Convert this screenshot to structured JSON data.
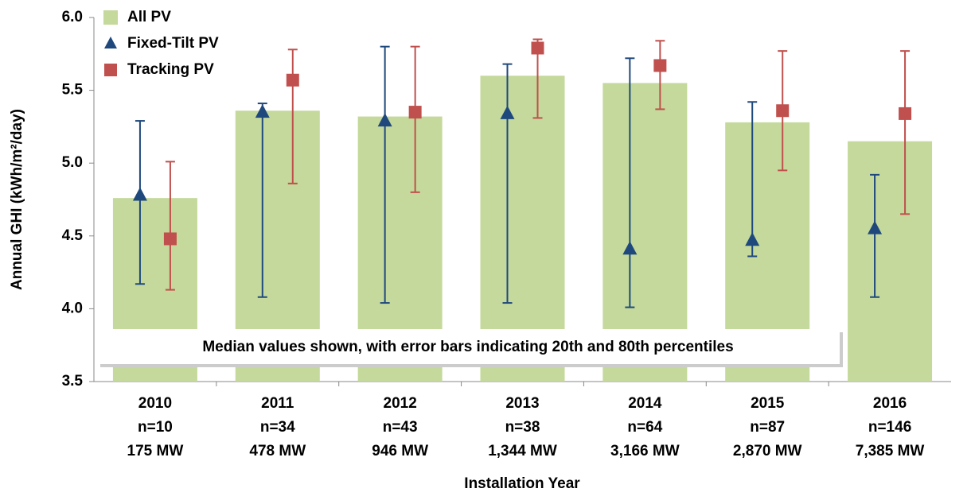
{
  "chart_data": {
    "type": "bar",
    "y_label": "Annual GHI (kWh/m²/day)",
    "x_label": "Installation Year",
    "annotation": "Median values shown, with error bars indicating 20th and 80th percentiles",
    "categories": [
      "2010",
      "2011",
      "2012",
      "2013",
      "2014",
      "2015",
      "2016"
    ],
    "counts": [
      "n=10",
      "n=34",
      "n=43",
      "n=38",
      "n=64",
      "n=87",
      "n=146"
    ],
    "capacity": [
      "175 MW",
      "478 MW",
      "946 MW",
      "1,344 MW",
      "3,166 MW",
      "2,870 MW",
      "7,385 MW"
    ],
    "series": [
      {
        "name": "All PV",
        "color": "#c4d99b",
        "values": [
          4.76,
          5.36,
          5.32,
          5.6,
          5.55,
          5.28,
          5.15
        ]
      },
      {
        "name": "Fixed-Tilt PV",
        "color": "#1f497d",
        "values": [
          4.78,
          5.35,
          5.29,
          5.34,
          4.41,
          4.47,
          4.55
        ],
        "low": [
          4.17,
          4.08,
          4.04,
          4.04,
          4.01,
          4.36,
          4.08
        ],
        "high": [
          5.29,
          5.41,
          5.8,
          5.68,
          5.72,
          5.42,
          4.92
        ]
      },
      {
        "name": "Tracking PV",
        "color": "#c0504d",
        "values": [
          4.48,
          5.57,
          5.35,
          5.79,
          5.67,
          5.36,
          5.34
        ],
        "low": [
          4.13,
          4.86,
          4.8,
          5.31,
          5.37,
          4.95,
          4.65
        ],
        "high": [
          5.01,
          5.78,
          5.8,
          5.85,
          5.84,
          5.77,
          5.77
        ]
      }
    ],
    "ylim": [
      3.5,
      6.0
    ],
    "yticks": [
      {
        "value": 3.5,
        "label": "3.5"
      },
      {
        "value": 4.0,
        "label": "4.0"
      },
      {
        "value": 4.5,
        "label": "4.5"
      },
      {
        "value": 5.0,
        "label": "5.0"
      },
      {
        "value": 5.5,
        "label": "5.5"
      },
      {
        "value": 6.0,
        "label": "6.0"
      }
    ],
    "legend": "top-left"
  }
}
